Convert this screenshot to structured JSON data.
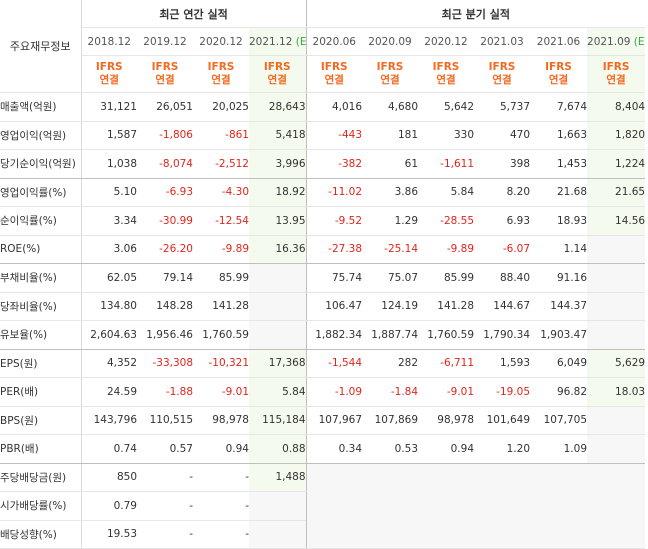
{
  "header": {
    "corner_label": "주요재무정보",
    "annual_group": "최근 연간 실적",
    "quarterly_group": "최근 분기 실적",
    "estimate_mark": "(E)",
    "periods": [
      "2018.12",
      "2019.12",
      "2020.12",
      "2021.12",
      "2020.06",
      "2020.09",
      "2020.12",
      "2021.03",
      "2021.06",
      "2021.09"
    ],
    "acct_line1": "IFRS",
    "acct_line2": "연결"
  },
  "rows": [
    {
      "label": "매출액(억원)",
      "values": [
        "31,121",
        "26,051",
        "20,025",
        "28,643",
        "4,016",
        "4,680",
        "5,642",
        "5,737",
        "7,674",
        "8,404"
      ]
    },
    {
      "label": "영업이익(억원)",
      "values": [
        "1,587",
        "-1,806",
        "-861",
        "5,418",
        "-443",
        "181",
        "330",
        "470",
        "1,663",
        "1,820"
      ]
    },
    {
      "label": "당기순이익(억원)",
      "values": [
        "1,038",
        "-8,074",
        "-2,512",
        "3,996",
        "-382",
        "61",
        "-1,611",
        "398",
        "1,453",
        "1,224"
      ]
    },
    {
      "label": "영업이익률(%)",
      "values": [
        "5.10",
        "-6.93",
        "-4.30",
        "18.92",
        "-11.02",
        "3.86",
        "5.84",
        "8.20",
        "21.68",
        "21.65"
      ]
    },
    {
      "label": "순이익률(%)",
      "values": [
        "3.34",
        "-30.99",
        "-12.54",
        "13.95",
        "-9.52",
        "1.29",
        "-28.55",
        "6.93",
        "18.93",
        "14.56"
      ]
    },
    {
      "label": "ROE(%)",
      "values": [
        "3.06",
        "-26.20",
        "-9.89",
        "16.36",
        "-27.38",
        "-25.14",
        "-9.89",
        "-6.07",
        "1.14",
        ""
      ]
    },
    {
      "label": "부채비율(%)",
      "values": [
        "62.05",
        "79.14",
        "85.99",
        "",
        "75.74",
        "75.07",
        "85.99",
        "88.40",
        "91.16",
        ""
      ]
    },
    {
      "label": "당좌비율(%)",
      "values": [
        "134.80",
        "148.28",
        "141.28",
        "",
        "106.47",
        "124.19",
        "141.28",
        "144.67",
        "144.37",
        ""
      ]
    },
    {
      "label": "유보율(%)",
      "values": [
        "2,604.63",
        "1,956.46",
        "1,760.59",
        "",
        "1,882.34",
        "1,887.74",
        "1,760.59",
        "1,790.34",
        "1,903.47",
        ""
      ]
    },
    {
      "label": "EPS(원)",
      "values": [
        "4,352",
        "-33,308",
        "-10,321",
        "17,368",
        "-1,544",
        "282",
        "-6,711",
        "1,593",
        "6,049",
        "5,629"
      ]
    },
    {
      "label": "PER(배)",
      "values": [
        "24.59",
        "-1.88",
        "-9.01",
        "5.84",
        "-1.09",
        "-1.84",
        "-9.01",
        "-19.05",
        "96.82",
        "18.03"
      ]
    },
    {
      "label": "BPS(원)",
      "values": [
        "143,796",
        "110,515",
        "98,978",
        "115,184",
        "107,967",
        "107,869",
        "98,978",
        "101,649",
        "107,705",
        ""
      ]
    },
    {
      "label": "PBR(배)",
      "values": [
        "0.74",
        "0.57",
        "0.94",
        "0.88",
        "0.34",
        "0.53",
        "0.94",
        "1.20",
        "1.09",
        ""
      ]
    },
    {
      "label": "주당배당금(원)",
      "values": [
        "850",
        "-",
        "-",
        "1,488"
      ]
    },
    {
      "label": "시가배당률(%)",
      "values": [
        "0.79",
        "-",
        "-",
        ""
      ]
    },
    {
      "label": "배당성향(%)",
      "values": [
        "19.53",
        "-",
        "-",
        ""
      ]
    }
  ]
}
